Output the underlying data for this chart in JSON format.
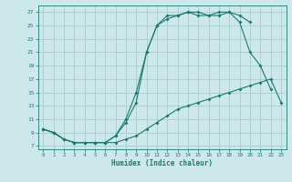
{
  "xlabel": "Humidex (Indice chaleur)",
  "bg_color": "#cce8ea",
  "grid_color": "#aacccc",
  "line_color": "#1a7a6e",
  "xlim": [
    -0.5,
    23.5
  ],
  "ylim": [
    6.5,
    28
  ],
  "xticks": [
    0,
    1,
    2,
    3,
    4,
    5,
    6,
    7,
    8,
    9,
    10,
    11,
    12,
    13,
    14,
    15,
    16,
    17,
    18,
    19,
    20,
    21,
    22,
    23
  ],
  "yticks": [
    7,
    9,
    11,
    13,
    15,
    17,
    19,
    21,
    23,
    25,
    27
  ],
  "line1_x": [
    0,
    1,
    2,
    3,
    4,
    5,
    6,
    7,
    8,
    9,
    10,
    11,
    12,
    13,
    14,
    15,
    16,
    17,
    18,
    19,
    20,
    21,
    22,
    23
  ],
  "line1_y": [
    9.5,
    9.0,
    8.0,
    7.5,
    7.5,
    7.5,
    7.5,
    7.5,
    8.0,
    8.5,
    9.5,
    10.5,
    11.5,
    12.5,
    13.0,
    13.5,
    14.0,
    14.5,
    15.0,
    15.5,
    16.0,
    16.5,
    17.0,
    13.5
  ],
  "line2_x": [
    0,
    1,
    2,
    3,
    4,
    5,
    6,
    7,
    8,
    9,
    10,
    11,
    12,
    13,
    14,
    15,
    16,
    17,
    18,
    19,
    20,
    21,
    22
  ],
  "line2_y": [
    9.5,
    9.0,
    8.0,
    7.5,
    7.5,
    7.5,
    7.5,
    8.5,
    10.5,
    13.5,
    21.0,
    25.0,
    26.0,
    26.5,
    27.0,
    26.5,
    26.5,
    26.5,
    27.0,
    25.5,
    21.0,
    19.0,
    15.5
  ],
  "line3_x": [
    0,
    1,
    2,
    3,
    4,
    5,
    6,
    7,
    8,
    9,
    10,
    11,
    12,
    13,
    14,
    15,
    16,
    17,
    18,
    19,
    20
  ],
  "line3_y": [
    9.5,
    9.0,
    8.0,
    7.5,
    7.5,
    7.5,
    7.5,
    8.5,
    11.0,
    15.0,
    21.0,
    25.0,
    26.5,
    26.5,
    27.0,
    27.0,
    26.5,
    27.0,
    27.0,
    26.5,
    25.5
  ]
}
